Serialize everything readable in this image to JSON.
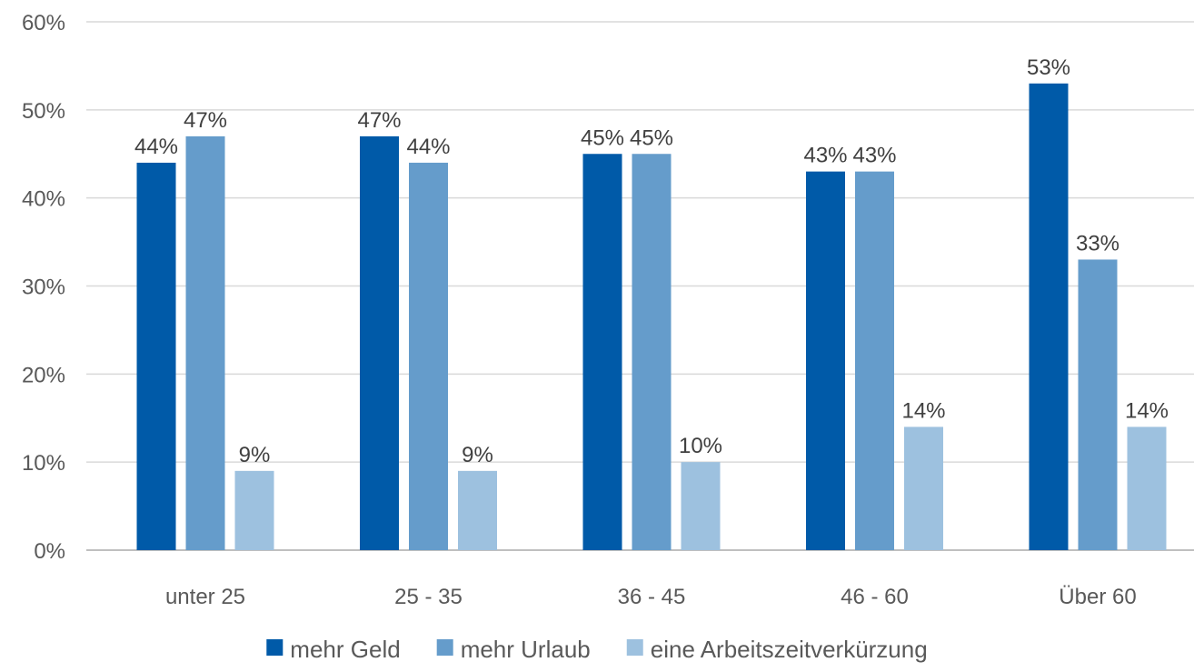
{
  "chart_data": {
    "type": "bar",
    "categories": [
      "unter 25",
      "25 - 35",
      "36 - 45",
      "46 - 60",
      "Über 60"
    ],
    "series": [
      {
        "name": "mehr Geld",
        "values": [
          44,
          47,
          45,
          43,
          53
        ],
        "color": "#005aa8"
      },
      {
        "name": "mehr Urlaub",
        "values": [
          47,
          44,
          45,
          43,
          33
        ],
        "color": "#659ccb"
      },
      {
        "name": "eine Arbeitszeitverkürzung",
        "values": [
          9,
          9,
          10,
          14,
          14
        ],
        "color": "#9dc1df"
      }
    ],
    "y_ticks": [
      "0%",
      "10%",
      "20%",
      "30%",
      "40%",
      "50%",
      "60%"
    ],
    "ylim": [
      0,
      60
    ],
    "value_suffix": "%",
    "grid": true,
    "legend_position": "bottom"
  }
}
